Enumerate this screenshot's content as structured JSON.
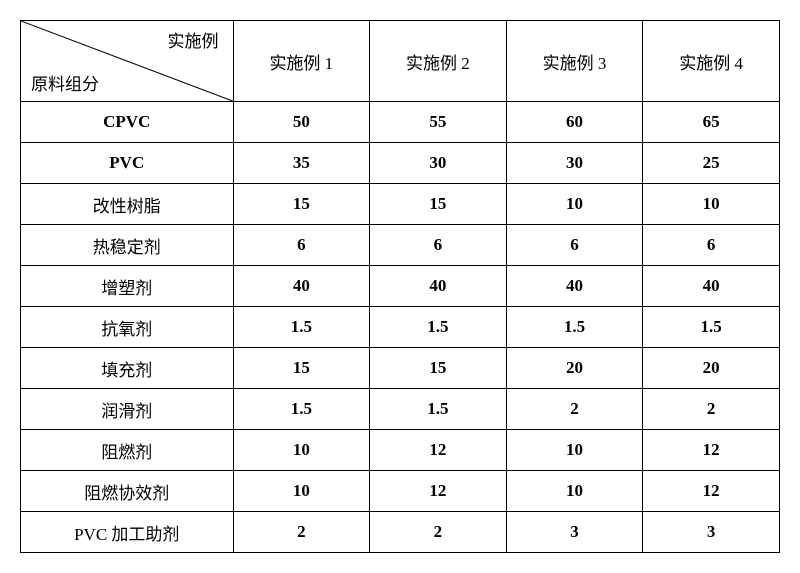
{
  "table": {
    "diag_top": "实施例",
    "diag_bottom": "原料组分",
    "columns": [
      "实施例 1",
      "实施例 2",
      "实施例 3",
      "实施例 4"
    ],
    "rows": [
      {
        "label": "CPVC",
        "label_style": "latin",
        "values": [
          "50",
          "55",
          "60",
          "65"
        ]
      },
      {
        "label": "PVC",
        "label_style": "latin",
        "values": [
          "35",
          "30",
          "30",
          "25"
        ]
      },
      {
        "label": "改性树脂",
        "label_style": "cn",
        "values": [
          "15",
          "15",
          "10",
          "10"
        ]
      },
      {
        "label": "热稳定剂",
        "label_style": "cn",
        "values": [
          "6",
          "6",
          "6",
          "6"
        ]
      },
      {
        "label": "增塑剂",
        "label_style": "cn",
        "values": [
          "40",
          "40",
          "40",
          "40"
        ]
      },
      {
        "label": "抗氧剂",
        "label_style": "cn",
        "values": [
          "1.5",
          "1.5",
          "1.5",
          "1.5"
        ]
      },
      {
        "label": "填充剂",
        "label_style": "cn",
        "values": [
          "15",
          "15",
          "20",
          "20"
        ]
      },
      {
        "label": "润滑剂",
        "label_style": "cn",
        "values": [
          "1.5",
          "1.5",
          "2",
          "2"
        ]
      },
      {
        "label": "阻燃剂",
        "label_style": "cn",
        "values": [
          "10",
          "12",
          "10",
          "12"
        ]
      },
      {
        "label": "阻燃协效剂",
        "label_style": "cn",
        "values": [
          "10",
          "12",
          "10",
          "12"
        ]
      },
      {
        "label": "PVC 加工助剂",
        "label_style": "cn",
        "values": [
          "2",
          "2",
          "3",
          "3"
        ]
      }
    ],
    "border_color": "#000000",
    "background_color": "#ffffff",
    "text_color": "#000000",
    "header_fontweight": "normal",
    "value_fontweight": "bold",
    "fontsize": 17
  }
}
